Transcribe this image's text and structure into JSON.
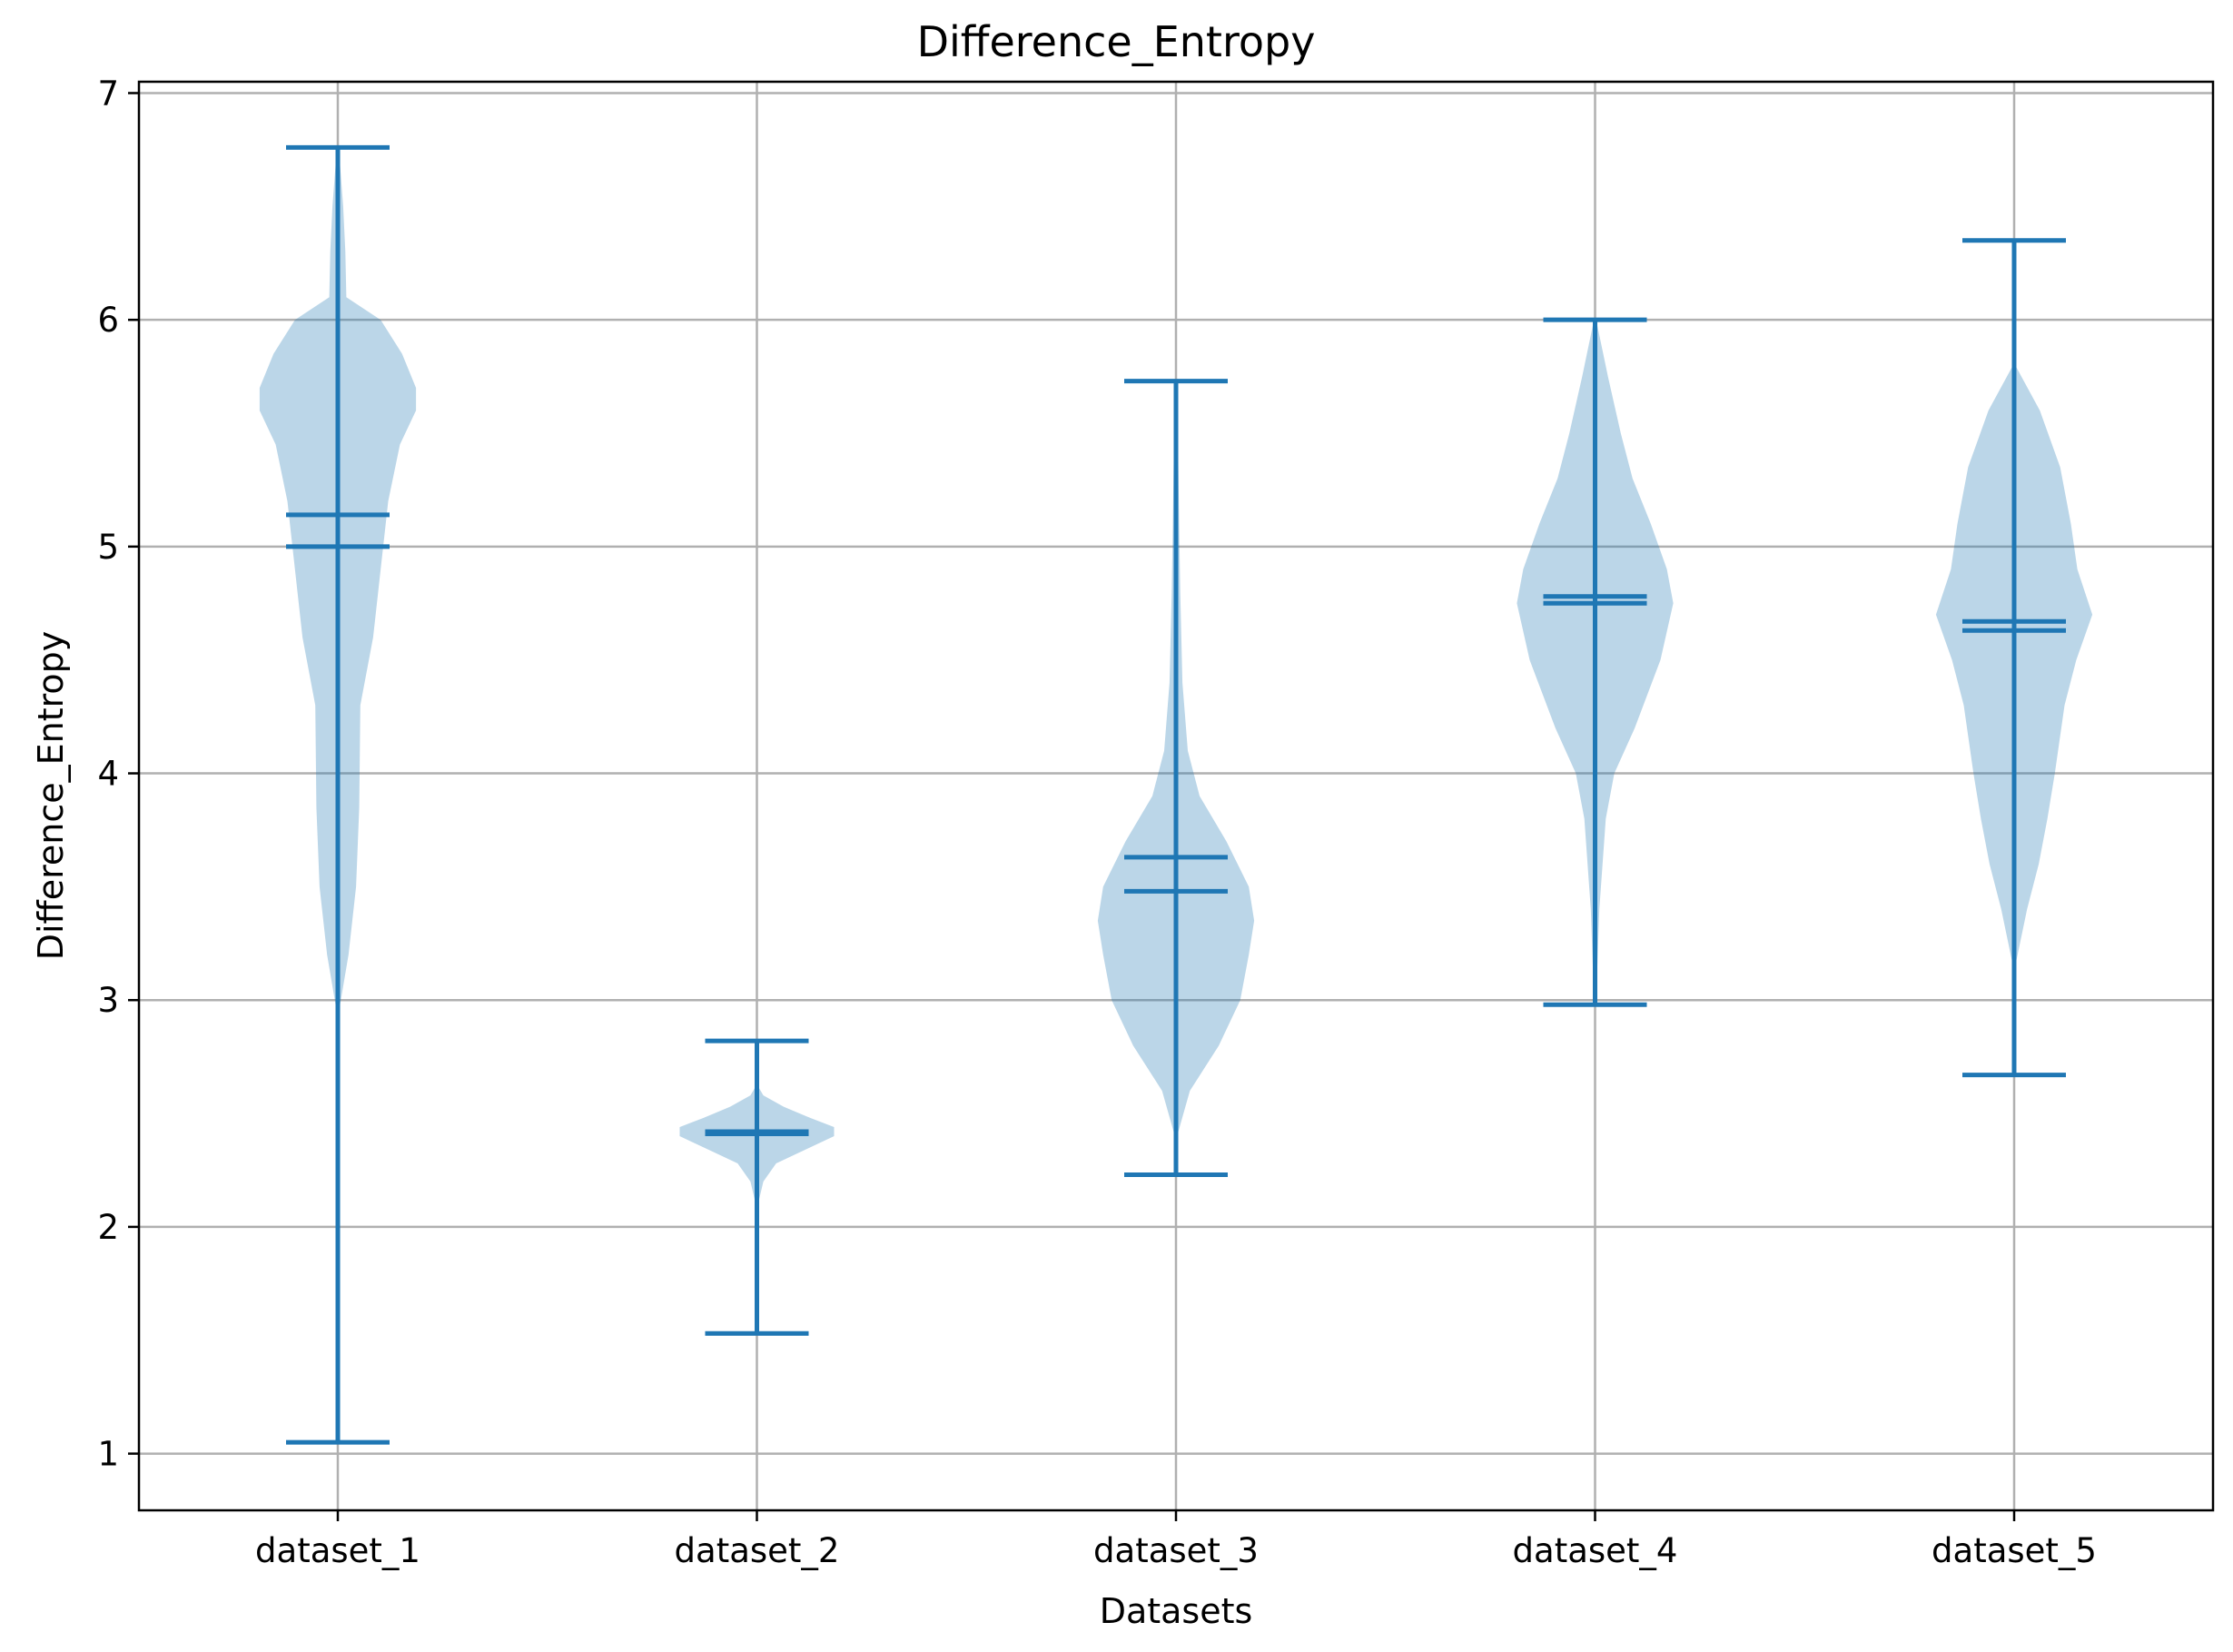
{
  "chart_data": {
    "type": "violin",
    "title": "Difference_Entropy",
    "xlabel": "Datasets",
    "ylabel": "Difference_Entropy",
    "ylim": [
      0.75,
      7.05
    ],
    "yticks": [
      1,
      2,
      3,
      4,
      5,
      6,
      7
    ],
    "grid": true,
    "color": "#1f77b4",
    "categories": [
      "dataset_1",
      "dataset_2",
      "dataset_3",
      "dataset_4",
      "dataset_5"
    ],
    "series": [
      {
        "name": "dataset_1",
        "min": 1.05,
        "max": 6.76,
        "mean": 5.14,
        "median": 5.0,
        "density_y": [
          2.95,
          3.2,
          3.5,
          3.85,
          4.3,
          4.6,
          4.9,
          5.2,
          5.45,
          5.6,
          5.7,
          5.85,
          6.0,
          6.1,
          6.3,
          6.5,
          6.75
        ],
        "density_w": [
          0.01,
          0.1,
          0.17,
          0.2,
          0.21,
          0.33,
          0.4,
          0.47,
          0.58,
          0.73,
          0.73,
          0.6,
          0.4,
          0.08,
          0.07,
          0.05,
          0.01
        ]
      },
      {
        "name": "dataset_2",
        "min": 1.53,
        "max": 2.82,
        "mean": 2.42,
        "median": 2.41,
        "density_y": [
          2.12,
          2.2,
          2.28,
          2.34,
          2.4,
          2.44,
          2.48,
          2.53,
          2.58,
          2.62
        ],
        "density_w": [
          0.02,
          0.06,
          0.18,
          0.45,
          0.72,
          0.72,
          0.5,
          0.25,
          0.06,
          0.01
        ]
      },
      {
        "name": "dataset_3",
        "min": 2.23,
        "max": 5.73,
        "mean": 3.63,
        "median": 3.48,
        "density_y": [
          2.4,
          2.6,
          2.8,
          3.0,
          3.2,
          3.35,
          3.5,
          3.7,
          3.9,
          4.1,
          4.4,
          4.8,
          5.1,
          5.4,
          5.73
        ],
        "density_w": [
          0.01,
          0.13,
          0.4,
          0.6,
          0.68,
          0.73,
          0.68,
          0.47,
          0.22,
          0.11,
          0.06,
          0.04,
          0.03,
          0.02,
          0.01
        ]
      },
      {
        "name": "dataset_4",
        "min": 2.98,
        "max": 6.0,
        "mean": 4.78,
        "median": 4.75,
        "density_y": [
          3.0,
          3.4,
          3.8,
          4.0,
          4.2,
          4.5,
          4.75,
          4.9,
          5.1,
          5.3,
          5.5,
          5.75,
          6.0
        ],
        "density_w": [
          0.01,
          0.04,
          0.1,
          0.18,
          0.37,
          0.61,
          0.73,
          0.67,
          0.52,
          0.35,
          0.24,
          0.12,
          0.01
        ]
      },
      {
        "name": "dataset_5",
        "min": 2.67,
        "max": 6.35,
        "mean": 4.67,
        "median": 4.63,
        "density_y": [
          3.15,
          3.4,
          3.6,
          3.8,
          4.0,
          4.3,
          4.5,
          4.7,
          4.9,
          5.1,
          5.35,
          5.6,
          5.8
        ],
        "density_w": [
          0.01,
          0.12,
          0.23,
          0.31,
          0.38,
          0.47,
          0.58,
          0.73,
          0.59,
          0.53,
          0.43,
          0.24,
          0.01
        ]
      }
    ]
  }
}
